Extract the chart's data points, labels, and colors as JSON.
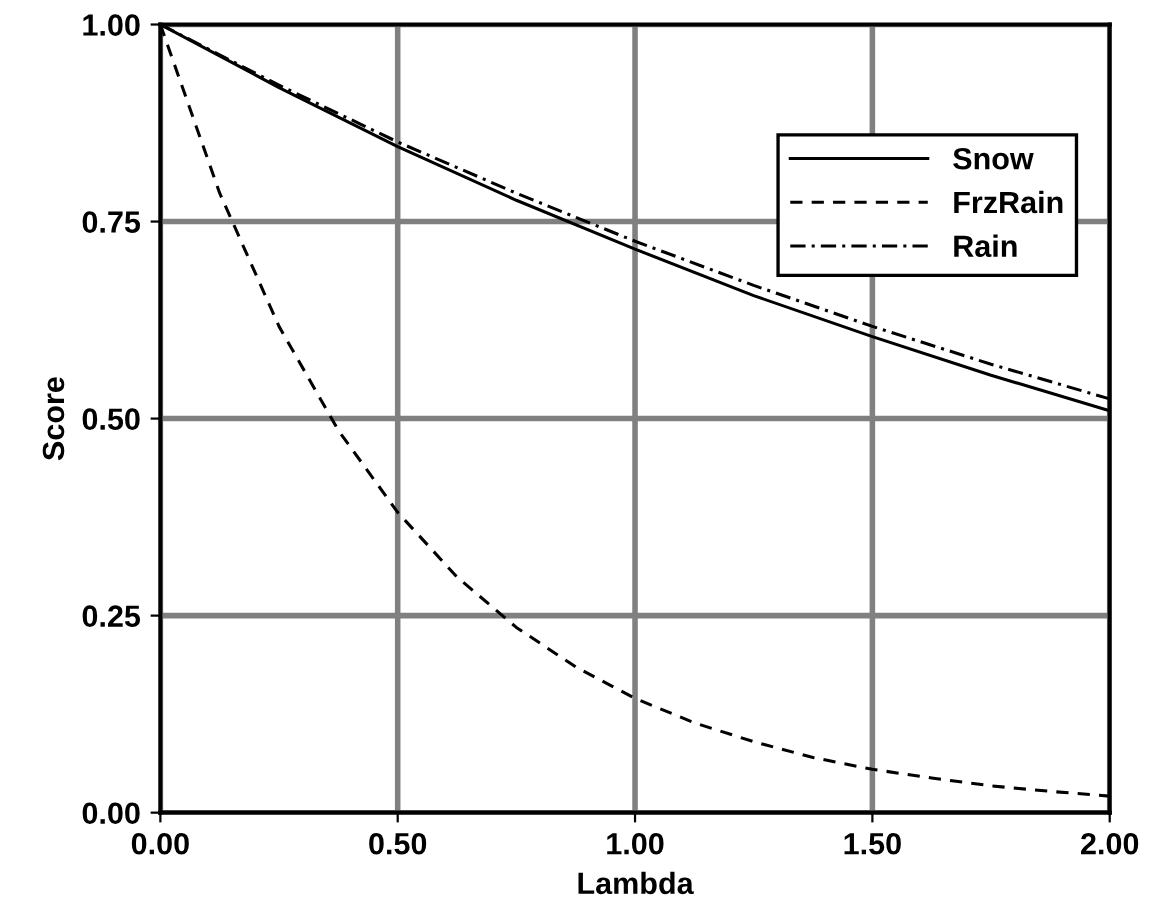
{
  "chart_data": {
    "type": "line",
    "xlabel": "Lambda",
    "ylabel": "Score",
    "series": [
      {
        "name": "Snow",
        "color": "#000000",
        "line_style": "solid",
        "x": [
          0,
          0.25,
          0.5,
          0.75,
          1.0,
          1.25,
          1.5,
          1.75,
          2.0
        ],
        "values": [
          1.0,
          0.92,
          0.845,
          0.777,
          0.715,
          0.656,
          0.604,
          0.555,
          0.51
        ]
      },
      {
        "name": "FrzRain",
        "color": "#000000",
        "line_style": "dashed",
        "x": [
          0,
          0.125,
          0.25,
          0.375,
          0.5,
          0.625,
          0.75,
          0.875,
          1.0,
          1.125,
          1.25,
          1.375,
          1.5,
          1.625,
          1.75,
          1.875,
          2.0
        ],
        "values": [
          1.0,
          0.786,
          0.617,
          0.485,
          0.381,
          0.299,
          0.235,
          0.185,
          0.145,
          0.114,
          0.09,
          0.07,
          0.055,
          0.044,
          0.034,
          0.027,
          0.021
        ]
      },
      {
        "name": "Rain",
        "color": "#000000",
        "line_style": "dashdot",
        "x": [
          0,
          0.25,
          0.5,
          0.75,
          1.0,
          1.25,
          1.5,
          1.75,
          2.0
        ],
        "values": [
          1.0,
          0.923,
          0.851,
          0.786,
          0.725,
          0.669,
          0.617,
          0.569,
          0.525
        ]
      }
    ],
    "xlim": [
      0,
      2.0
    ],
    "ylim": [
      0,
      1.0
    ],
    "xticks": [
      {
        "value": 0,
        "label": "0.00"
      },
      {
        "value": 0.5,
        "label": "0.50"
      },
      {
        "value": 1.0,
        "label": "1.00"
      },
      {
        "value": 1.5,
        "label": "1.50"
      },
      {
        "value": 2.0,
        "label": "2.00"
      }
    ],
    "yticks": [
      {
        "value": 0,
        "label": "0.00"
      },
      {
        "value": 0.25,
        "label": "0.25"
      },
      {
        "value": 0.5,
        "label": "0.50"
      },
      {
        "value": 0.75,
        "label": "0.75"
      },
      {
        "value": 1.0,
        "label": "1.00"
      }
    ],
    "grid": true,
    "legend": "top right",
    "marker": "none"
  }
}
